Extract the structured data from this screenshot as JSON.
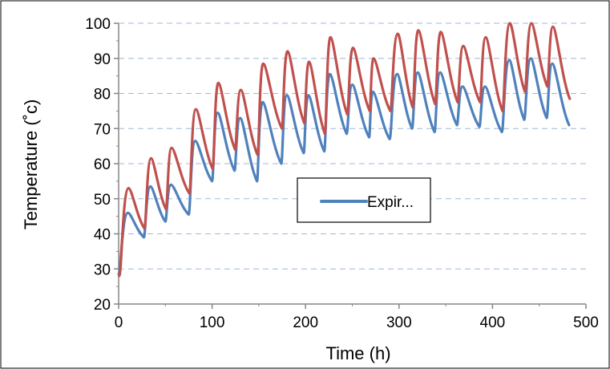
{
  "chart_data": {
    "type": "line",
    "xlabel": "Time (h)",
    "ylabel": "Temperature (˚c)",
    "xlim": [
      0,
      500
    ],
    "ylim": [
      20,
      100
    ],
    "xticks": [
      0,
      100,
      200,
      300,
      400,
      500
    ],
    "yticks": [
      20,
      30,
      40,
      50,
      60,
      70,
      80,
      90,
      100
    ],
    "grid": "horizontal dashed",
    "legend": {
      "position": "center-right",
      "entries": [
        "Expir..."
      ]
    },
    "series": [
      {
        "name": "Expir...",
        "color": "#4F81BD",
        "peaks": [
          [
            10,
            46
          ],
          [
            34,
            53.5
          ],
          [
            56,
            54
          ],
          [
            82,
            66.5
          ],
          [
            106,
            74.5
          ],
          [
            130,
            73
          ],
          [
            154,
            77.5
          ],
          [
            180,
            79.5
          ],
          [
            203,
            79.5
          ],
          [
            226,
            85.5
          ],
          [
            250,
            82.5
          ],
          [
            272,
            80.5
          ],
          [
            298,
            85.5
          ],
          [
            320,
            86
          ],
          [
            344,
            86
          ],
          [
            368,
            82
          ],
          [
            392,
            82
          ],
          [
            418,
            89.5
          ],
          [
            441,
            90
          ],
          [
            464,
            88.5
          ]
        ],
        "troughs": [
          [
            0,
            28.5
          ],
          [
            27,
            39
          ],
          [
            50,
            43.5
          ],
          [
            75,
            45.5
          ],
          [
            100,
            55
          ],
          [
            124,
            58
          ],
          [
            148,
            55
          ],
          [
            174,
            60
          ],
          [
            198,
            63
          ],
          [
            220,
            63.5
          ],
          [
            244,
            68.5
          ],
          [
            268,
            67.5
          ],
          [
            290,
            67
          ],
          [
            314,
            70
          ],
          [
            338,
            69
          ],
          [
            362,
            71
          ],
          [
            386,
            70.5
          ],
          [
            410,
            69
          ],
          [
            434,
            72.5
          ],
          [
            458,
            73
          ],
          [
            482,
            71
          ]
        ]
      },
      {
        "name": "",
        "color": "#C0504D",
        "peaks": [
          [
            10,
            53
          ],
          [
            34,
            61.5
          ],
          [
            56,
            64.5
          ],
          [
            82,
            75.5
          ],
          [
            106,
            83
          ],
          [
            130,
            81
          ],
          [
            154,
            88.5
          ],
          [
            180,
            92
          ],
          [
            203,
            89
          ],
          [
            226,
            96
          ],
          [
            250,
            93
          ],
          [
            272,
            90
          ],
          [
            298,
            97
          ],
          [
            320,
            98
          ],
          [
            344,
            97.5
          ],
          [
            368,
            93.5
          ],
          [
            392,
            96
          ],
          [
            418,
            100
          ],
          [
            441,
            100
          ],
          [
            464,
            99
          ]
        ],
        "troughs": [
          [
            0,
            28
          ],
          [
            27,
            41.5
          ],
          [
            50,
            47
          ],
          [
            75,
            51.5
          ],
          [
            100,
            58.5
          ],
          [
            124,
            64
          ],
          [
            148,
            62.5
          ],
          [
            174,
            70
          ],
          [
            198,
            71.5
          ],
          [
            220,
            68.5
          ],
          [
            244,
            74
          ],
          [
            268,
            75
          ],
          [
            290,
            75
          ],
          [
            314,
            76
          ],
          [
            338,
            77
          ],
          [
            362,
            77.5
          ],
          [
            386,
            77.5
          ],
          [
            410,
            75
          ],
          [
            434,
            80.5
          ],
          [
            458,
            82
          ],
          [
            482,
            78.5
          ]
        ]
      }
    ]
  }
}
